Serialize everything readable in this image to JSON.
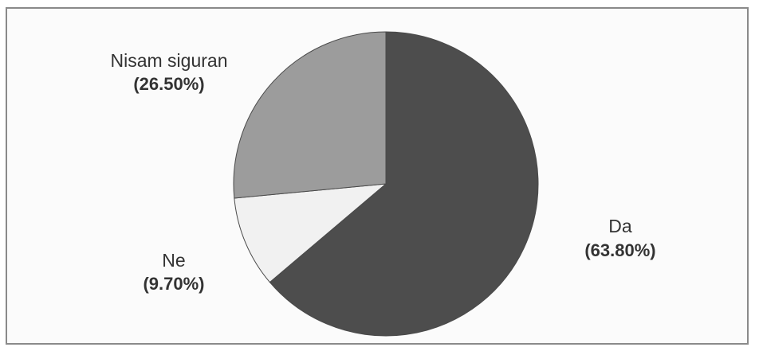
{
  "chart_data": {
    "type": "pie",
    "title": "",
    "slices": [
      {
        "label": "Da",
        "value_label": "(63.80%)",
        "value": 63.8,
        "color": "#4d4d4d"
      },
      {
        "label": "Ne",
        "value_label": "(9.70%)",
        "value": 9.7,
        "color": "#f1f1f1"
      },
      {
        "label": "Nisam siguran",
        "value_label": "(26.50%)",
        "value": 26.5,
        "color": "#9c9c9c"
      }
    ],
    "start_angle_deg": 0,
    "direction": "clockwise",
    "legend": "none",
    "labels_position": "outside"
  }
}
